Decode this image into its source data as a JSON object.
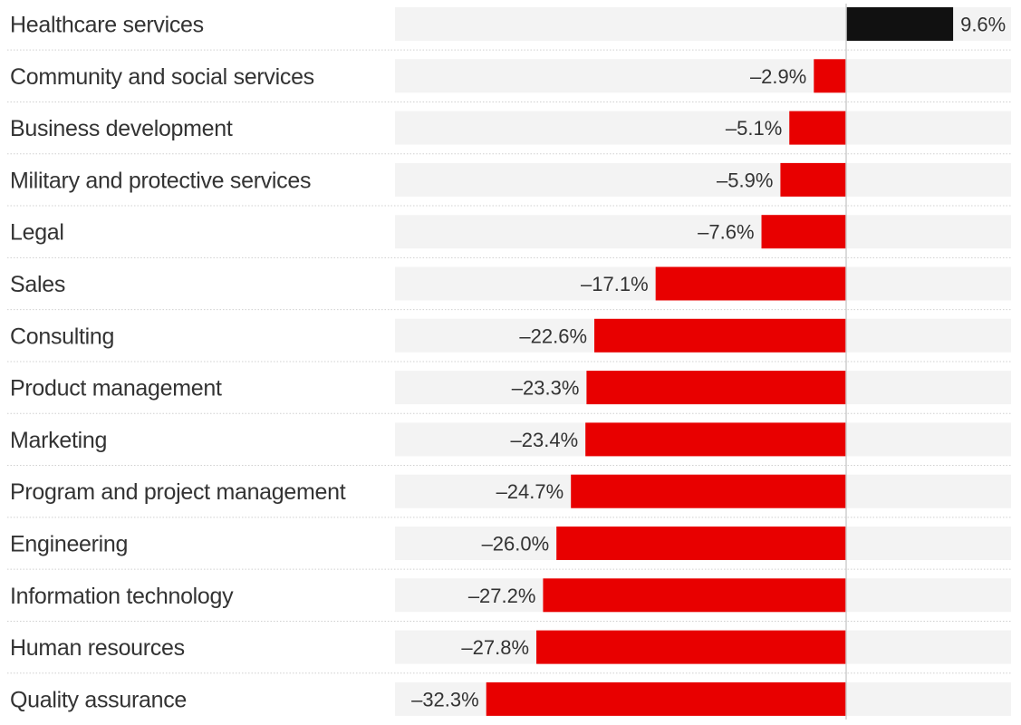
{
  "chart_data": {
    "type": "bar",
    "orientation": "horizontal",
    "title": "",
    "xlabel": "",
    "ylabel": "",
    "xlim": [
      -40,
      15
    ],
    "categories": [
      "Healthcare services",
      "Community and social services",
      "Business development",
      "Military and protective services",
      "Legal",
      "Sales",
      "Consulting",
      "Product management",
      "Marketing",
      "Program and project management",
      "Engineering",
      "Information technology",
      "Human resources",
      "Quality assurance"
    ],
    "values": [
      9.6,
      -2.9,
      -5.1,
      -5.9,
      -7.6,
      -17.1,
      -22.6,
      -23.3,
      -23.4,
      -24.7,
      -26.0,
      -27.2,
      -27.8,
      -32.3
    ],
    "value_labels": [
      "9.6%",
      "–2.9%",
      "–5.1%",
      "–5.9%",
      "–7.6%",
      "–17.1%",
      "–22.6%",
      "–23.3%",
      "–23.4%",
      "–24.7%",
      "–26.0%",
      "–27.2%",
      "–27.8%",
      "–32.3%"
    ],
    "colors": {
      "positive": "#111111",
      "negative": "#e80000",
      "track": "#f3f3f3",
      "zero_line": "#cfcfcf",
      "row_divider": "#d0d0d0",
      "text": "#333333"
    }
  }
}
